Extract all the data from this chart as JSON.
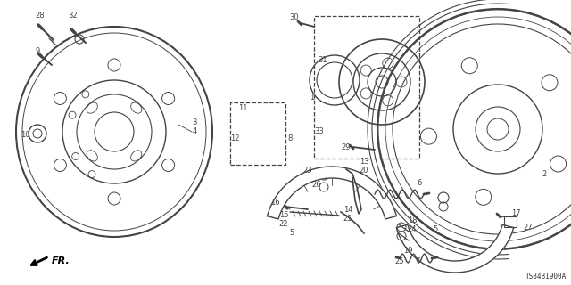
{
  "bg_color": "#ffffff",
  "line_color": "#444444",
  "diagram_id": "TS84B1900A",
  "fr_label": "FR.",
  "figsize": [
    6.4,
    3.2
  ],
  "dpi": 100,
  "xlim": [
    0,
    640
  ],
  "ylim": [
    0,
    320
  ]
}
